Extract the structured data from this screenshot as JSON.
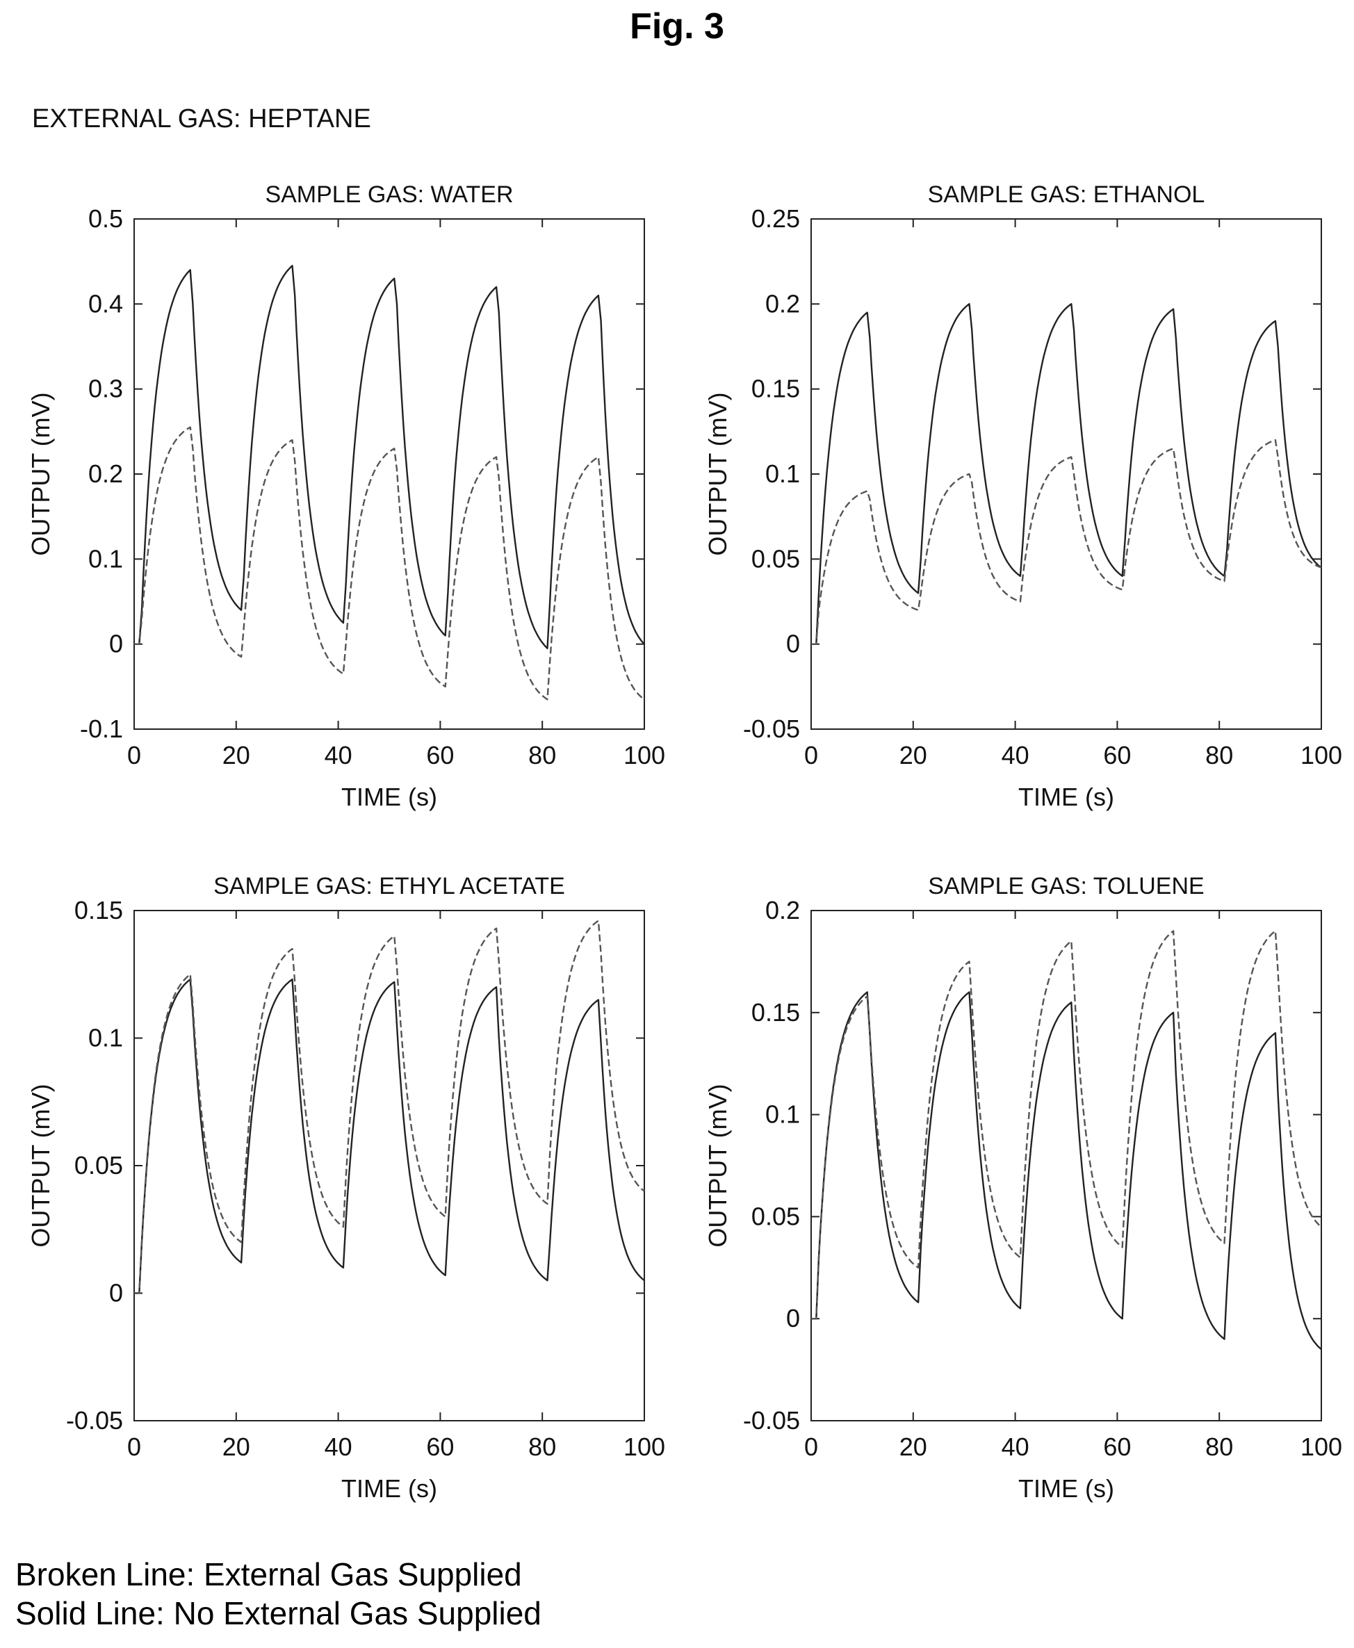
{
  "figure_title": "Fig. 3",
  "external_gas_label": "EXTERNAL GAS: HEPTANE",
  "legend": {
    "broken": "Broken Line: External Gas Supplied",
    "solid": "Solid Line: No External Gas Supplied"
  },
  "chart_data": [
    {
      "type": "line",
      "title": "SAMPLE GAS: WATER",
      "xlabel": "TIME (s)",
      "ylabel": "OUTPUT (mV)",
      "xlim": [
        0,
        100
      ],
      "ylim": [
        -0.1,
        0.5
      ],
      "xticks": [
        0,
        20,
        40,
        60,
        80,
        100
      ],
      "yticks": [
        -0.1,
        0,
        0.1,
        0.2,
        0.3,
        0.4,
        0.5
      ],
      "ytick_labels": [
        "-0.1",
        "0",
        "0.1",
        "0.2",
        "0.3",
        "0.4",
        "0.5"
      ],
      "series": [
        {
          "style": "solid",
          "x": [
            0,
            1,
            1.5,
            11,
            11.5,
            21,
            21.5,
            31,
            31.5,
            41,
            41.5,
            51,
            51.5,
            61,
            61.5,
            71,
            71.5,
            81,
            81.5,
            91,
            91.5,
            100
          ],
          "y": [
            0,
            0,
            0.04,
            0.44,
            0.4,
            0.04,
            0.08,
            0.445,
            0.41,
            0.025,
            0.07,
            0.43,
            0.4,
            0.01,
            0.06,
            0.42,
            0.39,
            -0.005,
            0.05,
            0.41,
            0.38,
            0.0
          ]
        },
        {
          "style": "broken",
          "x": [
            0,
            1,
            1.5,
            11,
            11.5,
            21,
            21.5,
            31,
            31.5,
            41,
            41.5,
            51,
            51.5,
            61,
            61.5,
            71,
            71.5,
            81,
            81.5,
            91,
            91.5,
            100
          ],
          "y": [
            0,
            0,
            0.03,
            0.255,
            0.23,
            -0.015,
            0.02,
            0.24,
            0.215,
            -0.035,
            0.0,
            0.23,
            0.205,
            -0.05,
            -0.01,
            0.22,
            0.195,
            -0.065,
            -0.02,
            0.22,
            0.19,
            -0.065
          ]
        }
      ]
    },
    {
      "type": "line",
      "title": "SAMPLE GAS: ETHANOL",
      "xlabel": "TIME (s)",
      "ylabel": "OUTPUT (mV)",
      "xlim": [
        0,
        100
      ],
      "ylim": [
        -0.05,
        0.25
      ],
      "xticks": [
        0,
        20,
        40,
        60,
        80,
        100
      ],
      "yticks": [
        -0.05,
        0,
        0.05,
        0.1,
        0.15,
        0.2,
        0.25
      ],
      "ytick_labels": [
        "-0.05",
        "0",
        "0.05",
        "0.1",
        "0.15",
        "0.2",
        "0.25"
      ],
      "series": [
        {
          "style": "solid",
          "x": [
            0,
            1,
            1.5,
            11,
            11.5,
            21,
            21.5,
            31,
            31.5,
            41,
            41.5,
            51,
            51.5,
            61,
            61.5,
            71,
            71.5,
            81,
            81.5,
            91,
            91.5,
            100
          ],
          "y": [
            0,
            0,
            0.03,
            0.195,
            0.18,
            0.03,
            0.05,
            0.2,
            0.185,
            0.04,
            0.06,
            0.2,
            0.185,
            0.04,
            0.06,
            0.197,
            0.18,
            0.04,
            0.055,
            0.19,
            0.175,
            0.045
          ]
        },
        {
          "style": "broken",
          "x": [
            0,
            1,
            1.5,
            11,
            11.5,
            21,
            21.5,
            31,
            31.5,
            41,
            41.5,
            51,
            51.5,
            61,
            61.5,
            71,
            71.5,
            81,
            81.5,
            91,
            91.5,
            100
          ],
          "y": [
            0,
            0,
            0.02,
            0.09,
            0.085,
            0.02,
            0.03,
            0.1,
            0.095,
            0.025,
            0.04,
            0.11,
            0.1,
            0.032,
            0.045,
            0.115,
            0.105,
            0.037,
            0.05,
            0.12,
            0.11,
            0.045
          ]
        }
      ]
    },
    {
      "type": "line",
      "title": "SAMPLE GAS: ETHYL ACETATE",
      "xlabel": "TIME (s)",
      "ylabel": "OUTPUT (mV)",
      "xlim": [
        0,
        100
      ],
      "ylim": [
        -0.05,
        0.15
      ],
      "xticks": [
        0,
        20,
        40,
        60,
        80,
        100
      ],
      "yticks": [
        -0.05,
        0,
        0.05,
        0.1,
        0.15
      ],
      "ytick_labels": [
        "-0.05",
        "0",
        "0.05",
        "0.1",
        "0.15"
      ],
      "series": [
        {
          "style": "solid",
          "x": [
            0,
            1,
            1.5,
            11,
            11.5,
            21,
            21.5,
            31,
            31.5,
            41,
            41.5,
            51,
            51.5,
            61,
            61.5,
            71,
            71.5,
            81,
            81.5,
            91,
            91.5,
            100
          ],
          "y": [
            0,
            0,
            0.02,
            0.123,
            0.11,
            0.012,
            0.03,
            0.123,
            0.108,
            0.01,
            0.028,
            0.122,
            0.105,
            0.007,
            0.025,
            0.12,
            0.1,
            0.005,
            0.02,
            0.115,
            0.098,
            0.005
          ]
        },
        {
          "style": "broken",
          "x": [
            0,
            1,
            1.5,
            11,
            11.5,
            21,
            21.5,
            31,
            31.5,
            41,
            41.5,
            51,
            51.5,
            61,
            61.5,
            71,
            71.5,
            81,
            81.5,
            91,
            91.5,
            100
          ],
          "y": [
            0,
            0,
            0.02,
            0.125,
            0.113,
            0.02,
            0.038,
            0.135,
            0.122,
            0.026,
            0.045,
            0.14,
            0.128,
            0.03,
            0.05,
            0.143,
            0.13,
            0.035,
            0.055,
            0.146,
            0.133,
            0.04
          ]
        }
      ]
    },
    {
      "type": "line",
      "title": "SAMPLE GAS: TOLUENE",
      "xlabel": "TIME (s)",
      "ylabel": "OUTPUT (mV)",
      "xlim": [
        0,
        100
      ],
      "ylim": [
        -0.05,
        0.2
      ],
      "xticks": [
        0,
        20,
        40,
        60,
        80,
        100
      ],
      "yticks": [
        -0.05,
        0,
        0.05,
        0.1,
        0.15,
        0.2
      ],
      "ytick_labels": [
        "-0.05",
        "0",
        "0.05",
        "0.1",
        "0.15",
        "0.2"
      ],
      "series": [
        {
          "style": "solid",
          "x": [
            0,
            1,
            1.5,
            11,
            11.5,
            21,
            21.5,
            31,
            31.5,
            41,
            41.5,
            51,
            51.5,
            61,
            61.5,
            71,
            71.5,
            81,
            81.5,
            91,
            91.5,
            100
          ],
          "y": [
            0,
            0,
            0.03,
            0.16,
            0.14,
            0.008,
            0.035,
            0.16,
            0.14,
            0.005,
            0.03,
            0.155,
            0.13,
            0.0,
            0.025,
            0.15,
            0.12,
            -0.01,
            0.015,
            0.14,
            0.11,
            -0.015
          ]
        },
        {
          "style": "broken",
          "x": [
            0,
            1,
            1.5,
            11,
            11.5,
            21,
            21.5,
            31,
            31.5,
            41,
            41.5,
            51,
            51.5,
            61,
            61.5,
            71,
            71.5,
            81,
            81.5,
            91,
            91.5,
            100
          ],
          "y": [
            0,
            0,
            0.03,
            0.158,
            0.14,
            0.025,
            0.05,
            0.175,
            0.155,
            0.03,
            0.055,
            0.185,
            0.165,
            0.035,
            0.06,
            0.19,
            0.168,
            0.037,
            0.06,
            0.19,
            0.17,
            0.045
          ]
        }
      ]
    }
  ]
}
